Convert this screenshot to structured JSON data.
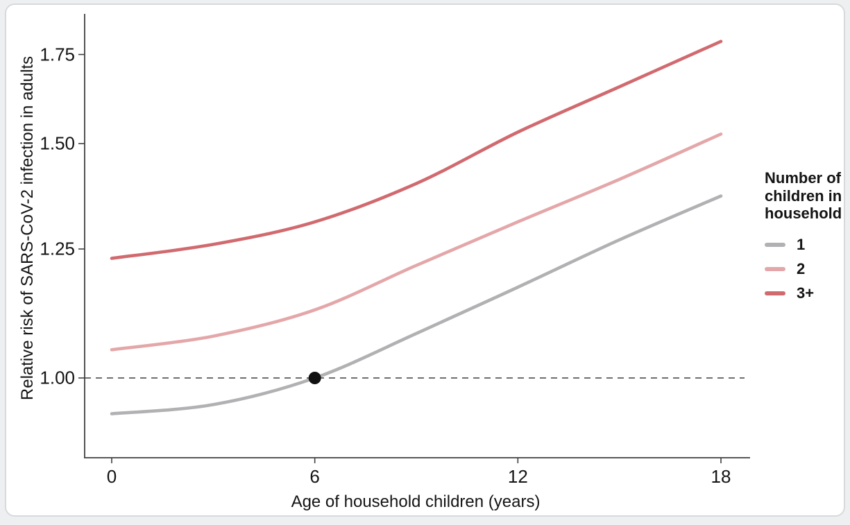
{
  "figure": {
    "background": "#ffffff",
    "page_background": "#edeff0",
    "border_color": "#d7d9da",
    "axis_color": "#3f3f3f",
    "text_color": "#141414"
  },
  "chart_data": {
    "type": "line",
    "title": "",
    "xlabel": "Age of household children (years)",
    "ylabel": "Relative risk of SARS-CoV-2 infection in adults",
    "x_ticks": [
      0,
      6,
      12,
      18
    ],
    "x_tick_labels": [
      "0",
      "6",
      "12",
      "18"
    ],
    "y_ticks": [
      1.0,
      1.25,
      1.5,
      1.75
    ],
    "y_tick_labels": [
      "1.00",
      "1.25",
      "1.50",
      "1.75"
    ],
    "y_scale": "log",
    "xlim": [
      -0.8,
      18.9
    ],
    "ylim": [
      0.87,
      1.88
    ],
    "grid": false,
    "reference_line": {
      "value": 1.0,
      "style": "dashed",
      "color": "#3f3f3f"
    },
    "point_marker": {
      "x": 6,
      "value": 1.0,
      "color": "#111111"
    },
    "x": [
      0,
      3,
      6,
      9,
      12,
      15,
      18
    ],
    "series": [
      {
        "name": "1",
        "color": "#b1b1b3",
        "values": [
          0.94,
          0.955,
          1.0,
          1.08,
          1.17,
          1.27,
          1.37
        ]
      },
      {
        "name": "2",
        "color": "#e4a7a9",
        "values": [
          1.05,
          1.075,
          1.125,
          1.215,
          1.31,
          1.41,
          1.525
        ]
      },
      {
        "name": "3+",
        "color": "#d16a6f",
        "values": [
          1.23,
          1.26,
          1.31,
          1.4,
          1.53,
          1.655,
          1.79
        ]
      }
    ],
    "legend": {
      "title": "Number of children in household",
      "position": "right",
      "entries": [
        "1",
        "2",
        "3+"
      ]
    }
  }
}
